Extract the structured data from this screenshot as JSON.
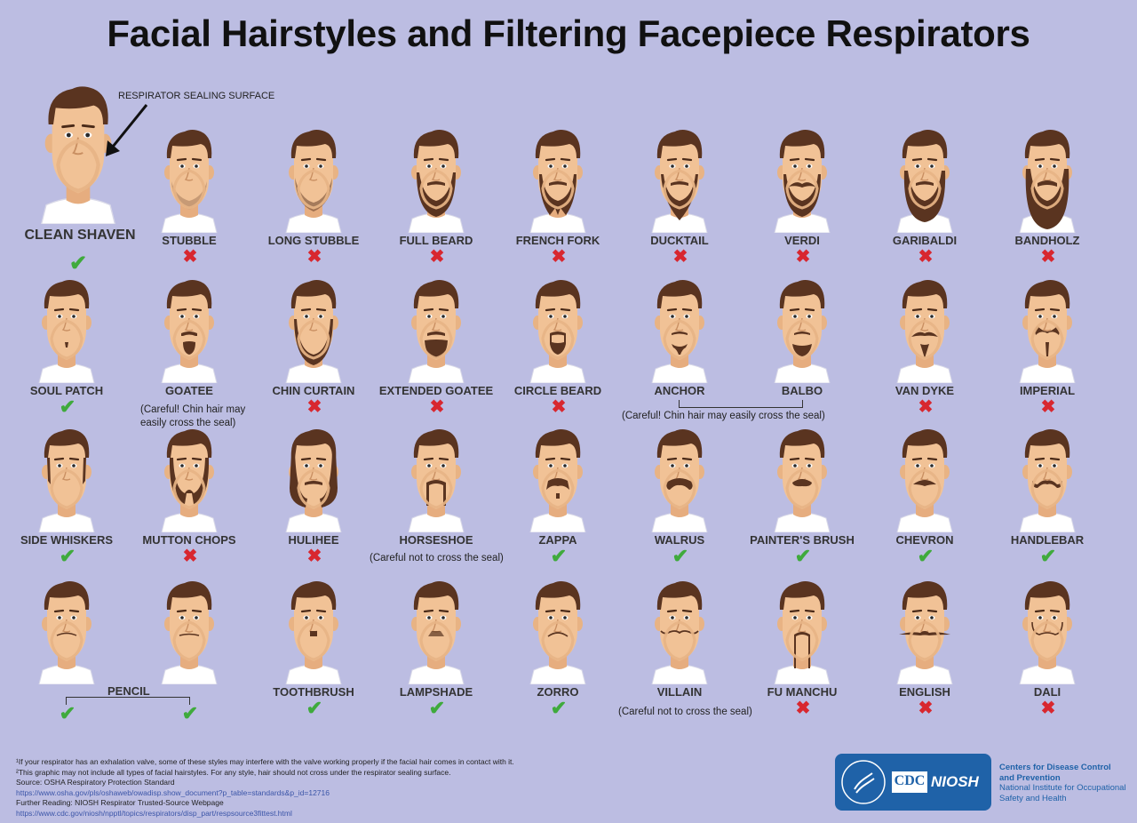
{
  "title": "Facial Hairstyles and Filtering Facepiece Respirators",
  "sealing_surface_label": "RESPIRATOR SEALING SURFACE",
  "colors": {
    "background": "#bcbde2",
    "skin": "#f1c296",
    "hair": "#5a3420",
    "mask": "#e7b486",
    "check": "#3faa3c",
    "cross": "#d8272f"
  },
  "clean_shaven": {
    "label": "CLEAN SHAVEN",
    "status": "✔"
  },
  "styles": [
    {
      "label": "STUBBLE",
      "status": "✖",
      "beard": "stubble"
    },
    {
      "label": "LONG STUBBLE",
      "status": "✖",
      "beard": "longstubble"
    },
    {
      "label": "FULL BEARD",
      "status": "✖",
      "beard": "full"
    },
    {
      "label": "FRENCH FORK",
      "status": "✖",
      "beard": "fork"
    },
    {
      "label": "DUCKTAIL",
      "status": "✖",
      "beard": "ducktail"
    },
    {
      "label": "VERDI",
      "status": "✖",
      "beard": "verdi"
    },
    {
      "label": "GARIBALDI",
      "status": "✖",
      "beard": "garibaldi"
    },
    {
      "label": "BANDHOLZ",
      "status": "✖",
      "beard": "bandholz"
    },
    {
      "label": "SOUL PATCH",
      "status": "✔",
      "beard": "soulpatch"
    },
    {
      "label": "GOATEE",
      "status": "",
      "beard": "goatee"
    },
    {
      "label": "CHIN CURTAIN",
      "status": "✖",
      "beard": "chincurtain"
    },
    {
      "label": "EXTENDED GOATEE",
      "status": "✖",
      "beard": "extgoatee"
    },
    {
      "label": "CIRCLE BEARD",
      "status": "✖",
      "beard": "circle"
    },
    {
      "label": "ANCHOR",
      "status": "",
      "beard": "anchor"
    },
    {
      "label": "BALBO",
      "status": "",
      "beard": "balbo"
    },
    {
      "label": "VAN DYKE",
      "status": "✖",
      "beard": "vandyke"
    },
    {
      "label": "IMPERIAL",
      "status": "✖",
      "beard": "imperial"
    },
    {
      "label": "SIDE WHISKERS",
      "status": "✔",
      "beard": "sidewhiskers"
    },
    {
      "label": "MUTTON CHOPS",
      "status": "✖",
      "beard": "mutton"
    },
    {
      "label": "HULIHEE",
      "status": "✖",
      "beard": "hulihee"
    },
    {
      "label": "HORSESHOE",
      "status": "",
      "beard": "horseshoe"
    },
    {
      "label": "ZAPPA",
      "status": "✔",
      "beard": "zappa"
    },
    {
      "label": "WALRUS",
      "status": "✔",
      "beard": "walrus"
    },
    {
      "label": "PAINTER'S BRUSH",
      "status": "✔",
      "beard": "painter"
    },
    {
      "label": "CHEVRON",
      "status": "✔",
      "beard": "chevron"
    },
    {
      "label": "HANDLEBAR",
      "status": "✔",
      "beard": "handlebar"
    },
    {
      "label": "",
      "status": "✔",
      "beard": "pencil"
    },
    {
      "label": "",
      "status": "✔",
      "beard": "pencil2"
    },
    {
      "label": "TOOTHBRUSH",
      "status": "✔",
      "beard": "toothbrush"
    },
    {
      "label": "LAMPSHADE",
      "status": "✔",
      "beard": "lampshade"
    },
    {
      "label": "ZORRO",
      "status": "✔",
      "beard": "zorro"
    },
    {
      "label": "VILLAIN",
      "status": "",
      "beard": "villain"
    },
    {
      "label": "FU MANCHU",
      "status": "✖",
      "beard": "fumanchu"
    },
    {
      "label": "ENGLISH",
      "status": "✖",
      "beard": "english"
    },
    {
      "label": "DALI",
      "status": "✖",
      "beard": "dali"
    }
  ],
  "notes": {
    "goatee_1": "(Careful! Chin hair may",
    "goatee_2": "easily cross the seal)",
    "anchor_balbo": "(Careful! Chin hair may easily cross the seal)",
    "horseshoe": "(Careful not to cross the seal)",
    "villain": "(Careful not to cross the seal)",
    "pencil": "PENCIL"
  },
  "footer": {
    "note1": "¹If your respirator has an exhalation valve, some of these styles may interfere with the valve working properly if the facial hair comes in contact with it.",
    "note2": "²This graphic may not include all types of facial hairstyles. For any style, hair should not cross under the respirator sealing surface.",
    "source": "Source: OSHA Respiratory Protection Standard",
    "source_url": "https://www.osha.gov/pls/oshaweb/owadisp.show_document?p_table=standards&p_id=12716",
    "further": "Further Reading: NIOSH Respirator Trusted-Source Webpage",
    "further_url": "https://www.cdc.gov/niosh/npptl/topics/respirators/disp_part/respsource3fittest.html"
  },
  "agency": {
    "cdc": "CDC",
    "niosh": "NIOSH",
    "line1": "Centers for Disease Control",
    "line2": "and Prevention",
    "line3": "National Institute for Occupational",
    "line4": "Safety and Health"
  }
}
